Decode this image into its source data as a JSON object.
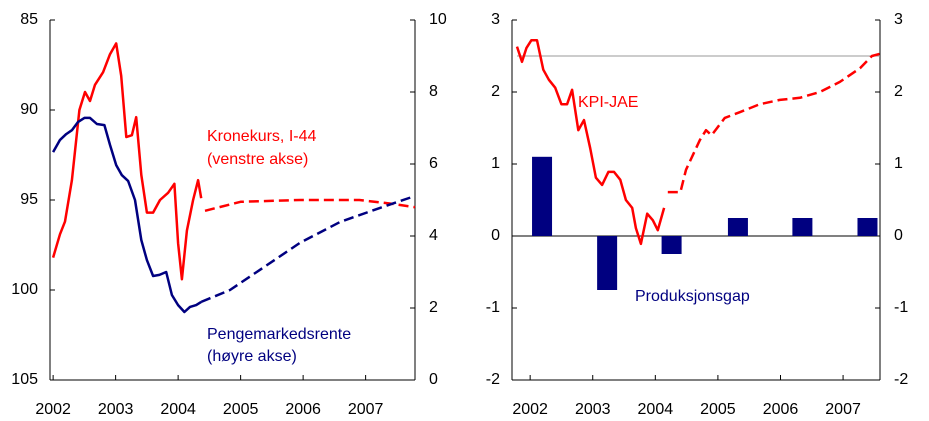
{
  "chart_data": [
    {
      "type": "line",
      "xlim": [
        2001.95,
        2007.79
      ],
      "xticks": [
        2002,
        2003,
        2004,
        2005,
        2006,
        2007
      ],
      "ylim": [
        85,
        105
      ],
      "yticks": [
        85,
        90,
        95,
        100,
        105
      ],
      "y_inverted": true,
      "y2lim": [
        0,
        10
      ],
      "y2ticks": [
        0,
        2,
        4,
        6,
        8,
        10
      ],
      "annotations": [
        "Kronekurs, I-44",
        "(venstre akse)",
        "Pengemarkedsrente",
        "(høyre akse)"
      ],
      "series": [
        {
          "color": "#ff0000",
          "dashed": false,
          "axis": "y",
          "x": [
            2002.0,
            2002.11,
            2002.19,
            2002.3,
            2002.42,
            2002.51,
            2002.59,
            2002.67,
            2002.8,
            2002.91,
            2003.01,
            2003.09,
            2003.17,
            2003.26,
            2003.33,
            2003.41,
            2003.5,
            2003.6,
            2003.71,
            2003.84,
            2003.94,
            2004.0,
            2004.06,
            2004.14,
            2004.24,
            2004.32,
            2004.37
          ],
          "values": [
            98.2,
            96.9,
            96.2,
            93.9,
            90.0,
            89.0,
            89.5,
            88.6,
            87.9,
            86.9,
            86.3,
            88.1,
            91.5,
            91.4,
            90.4,
            93.6,
            95.7,
            95.7,
            95.0,
            94.6,
            94.1,
            97.4,
            99.4,
            96.7,
            95.0,
            93.9,
            94.9
          ]
        },
        {
          "color": "#ff0000",
          "dashed": true,
          "axis": "y",
          "x": [
            2004.43,
            2005.0,
            2005.95,
            2006.9,
            2007.4,
            2007.79
          ],
          "values": [
            95.6,
            95.1,
            95.0,
            95.0,
            95.2,
            95.4
          ]
        },
        {
          "color": "#000080",
          "dashed": false,
          "axis": "y2",
          "x": [
            2002.0,
            2002.11,
            2002.21,
            2002.3,
            2002.4,
            2002.5,
            2002.59,
            2002.7,
            2002.82,
            2002.91,
            2003.01,
            2003.1,
            2003.2,
            2003.31,
            2003.41,
            2003.5,
            2003.6,
            2003.7,
            2003.81,
            2003.9,
            2004.0,
            2004.1,
            2004.19,
            2004.29,
            2004.37
          ],
          "values": [
            6.33,
            6.67,
            6.83,
            6.94,
            7.17,
            7.28,
            7.28,
            7.11,
            7.08,
            6.53,
            5.97,
            5.69,
            5.53,
            5.0,
            3.89,
            3.33,
            2.89,
            2.92,
            3.0,
            2.36,
            2.08,
            1.89,
            2.03,
            2.08,
            2.17
          ]
        },
        {
          "color": "#000080",
          "dashed": true,
          "axis": "y2",
          "x": [
            2004.37,
            2004.83,
            2005.31,
            2005.95,
            2006.59,
            2007.23,
            2007.79
          ],
          "values": [
            2.17,
            2.5,
            3.06,
            3.81,
            4.39,
            4.78,
            5.11
          ]
        }
      ]
    },
    {
      "type": "combo",
      "xlim": [
        2001.71,
        2007.59
      ],
      "xticks": [
        2002,
        2003,
        2004,
        2005,
        2006,
        2007
      ],
      "ylim": [
        -2,
        3
      ],
      "yticks": [
        -2,
        -1,
        0,
        1,
        2,
        3
      ],
      "y2lim": [
        -2,
        3
      ],
      "y2ticks": [
        -2,
        -1,
        0,
        1,
        2,
        3
      ],
      "reference_line": 2.5,
      "annotations": [
        "KPI-JAE",
        "Produksjonsgap"
      ],
      "series": [
        {
          "type": "bar",
          "color": "#000080",
          "axis": "y",
          "x": [
            2002.19,
            2003.23,
            2004.26,
            2005.32,
            2006.35,
            2007.39
          ],
          "values": [
            1.1,
            -0.75,
            -0.25,
            0.25,
            0.25,
            0.25
          ]
        },
        {
          "type": "line",
          "color": "#ff0000",
          "dashed": false,
          "axis": "y",
          "x": [
            2001.79,
            2001.87,
            2001.94,
            2002.02,
            2002.11,
            2002.21,
            2002.3,
            2002.4,
            2002.5,
            2002.59,
            2002.67,
            2002.77,
            2002.86,
            2002.96,
            2003.05,
            2003.15,
            2003.25,
            2003.34,
            2003.44,
            2003.53,
            2003.63,
            2003.69,
            2003.77,
            2003.87,
            2003.96,
            2004.04,
            2004.14
          ],
          "values": [
            2.63,
            2.42,
            2.61,
            2.72,
            2.72,
            2.31,
            2.17,
            2.06,
            1.83,
            1.83,
            2.03,
            1.47,
            1.61,
            1.22,
            0.81,
            0.71,
            0.89,
            0.89,
            0.78,
            0.5,
            0.39,
            0.11,
            -0.11,
            0.31,
            0.22,
            0.08,
            0.39
          ]
        },
        {
          "type": "line",
          "color": "#ff0000",
          "dashed": true,
          "axis": "y",
          "x": [
            2004.2,
            2004.4,
            2004.49,
            2004.71,
            2004.81,
            2004.9,
            2005.11,
            2005.35,
            2005.67,
            2005.99,
            2006.31,
            2006.63,
            2006.95,
            2007.27,
            2007.46,
            2007.59
          ],
          "values": [
            0.61,
            0.61,
            0.92,
            1.33,
            1.47,
            1.4,
            1.64,
            1.72,
            1.83,
            1.89,
            1.92,
            2.0,
            2.14,
            2.33,
            2.5,
            2.53
          ]
        }
      ]
    }
  ]
}
